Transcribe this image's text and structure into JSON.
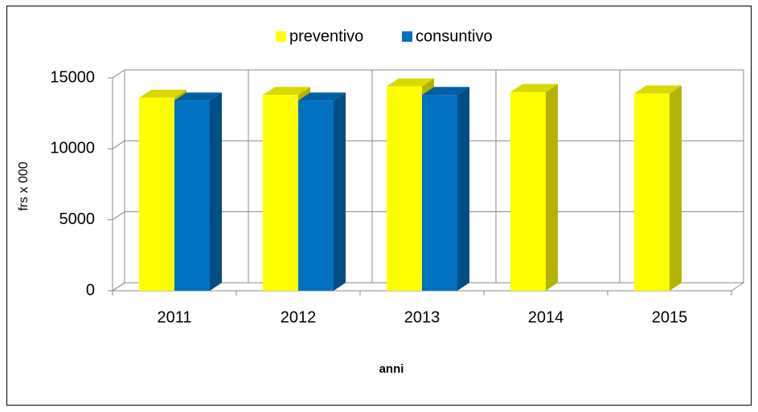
{
  "chart_data": {
    "type": "bar3d",
    "categories": [
      "2011",
      "2012",
      "2013",
      "2014",
      "2015"
    ],
    "series": [
      {
        "name": "preventivo",
        "color": "#ffff00",
        "values": [
          13600,
          13800,
          14400,
          14000,
          13900
        ]
      },
      {
        "name": "consuntivo",
        "color": "#0070c0",
        "values": [
          13400,
          13400,
          13800,
          null,
          null
        ]
      }
    ],
    "ylim": [
      0,
      15000
    ],
    "yticks": [
      0,
      5000,
      10000,
      15000
    ],
    "grid": true,
    "ylabel": "frs x 000",
    "xlabel": "anni",
    "legend": "top"
  }
}
